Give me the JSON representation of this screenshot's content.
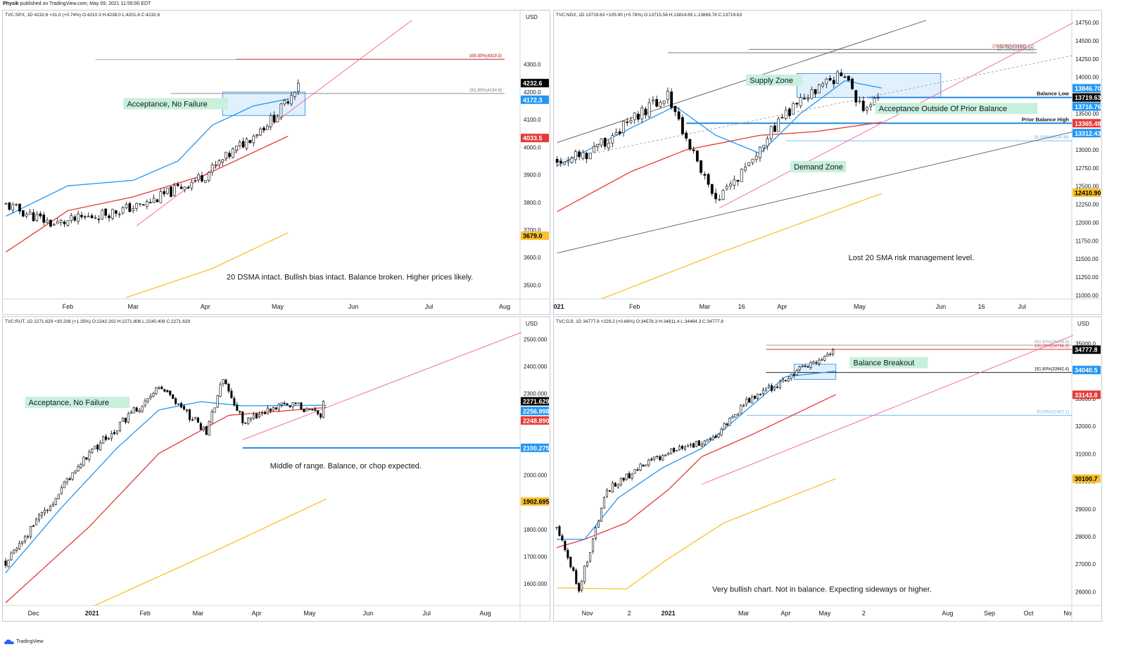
{
  "header": {
    "author": "Physik",
    "published": "published on TradingView.com, May 09, 2021 11:55:00 EDT"
  },
  "footer": {
    "brand": "TradingView"
  },
  "colors": {
    "up": "#ffffff",
    "down": "#000000",
    "ema": "#2196f3",
    "sma50": "#e53935",
    "sma200": "#fbc02d",
    "trend": "#f06292",
    "level": "#1e88e5"
  },
  "chart_data": [
    {
      "id": "spx",
      "type": "candlestick",
      "symbol_line": "TVC:SPX, 1D 4232.6 +31.0 (+0.74%) O:4210.3 H:4238.0 L:4201.6 C:4232.6",
      "currency": "USD",
      "y_ticks": [
        "4300.0",
        "4200.0",
        "4100.0",
        "4000.0",
        "3900.0",
        "3800.0",
        "3700.0",
        "3600.0",
        "3500.0"
      ],
      "y_tick_values": [
        4300,
        4200,
        4100,
        4000,
        3900,
        3800,
        3700,
        3600,
        3500
      ],
      "ylim": [
        3450,
        4460
      ],
      "x_labels": [
        "Feb",
        "Mar",
        "Apr",
        "May",
        "Jun",
        "Jul",
        "Aug"
      ],
      "x_label_index": [
        18,
        37,
        58,
        79,
        101,
        123,
        145
      ],
      "n_slots": 150,
      "candles": {
        "start": 3790,
        "end": 4232.6,
        "dips": [
          [
            14,
            3720
          ],
          [
            40,
            3790
          ],
          [
            58,
            3900
          ],
          [
            79,
            4120
          ]
        ],
        "count": 86,
        "seed": 11,
        "vol": 18
      },
      "ema20": [
        [
          0,
          3750
        ],
        [
          18,
          3860
        ],
        [
          37,
          3880
        ],
        [
          50,
          3950
        ],
        [
          60,
          4080
        ],
        [
          72,
          4150
        ],
        [
          82,
          4175
        ]
      ],
      "sma50": [
        [
          0,
          3620
        ],
        [
          18,
          3770
        ],
        [
          37,
          3820
        ],
        [
          58,
          3900
        ],
        [
          82,
          4040
        ]
      ],
      "sma200": [
        [
          35,
          3455
        ],
        [
          60,
          3560
        ],
        [
          82,
          3690
        ]
      ],
      "trendlines": [
        {
          "c": "trend",
          "p": [
            [
              38,
              3715
            ],
            [
              118,
              4460
            ]
          ]
        }
      ],
      "hlines": [
        {
          "y": 4317.9,
          "x1": 26,
          "x2": 145,
          "color": "#9e9e9e",
          "label": "261.80%(4317.9)"
        },
        {
          "y": 4319.2,
          "x1": 67,
          "x2": 145,
          "color": "#e53935",
          "label": "100.00%(4319.2)"
        },
        {
          "y": 4194.8,
          "x1": 48,
          "x2": 145,
          "color": "#787b86",
          "label": "261.80%(4194.8)"
        }
      ],
      "box": {
        "x1": 63,
        "x2": 87,
        "y1": 4115,
        "y2": 4200
      },
      "price_labels": [
        {
          "text": "4232.6",
          "y": 4232.6,
          "bg": "#000000",
          "fg": "#ffffff"
        },
        {
          "text": "4172.3",
          "y": 4172.3,
          "bg": "#2196f3",
          "fg": "#ffffff"
        },
        {
          "text": "4033.5",
          "y": 4033.5,
          "bg": "#e53935",
          "fg": "#ffffff"
        },
        {
          "text": "3679.0",
          "y": 3679.0,
          "bg": "#fbc02d",
          "fg": "#000000"
        }
      ],
      "notes": [
        {
          "text": "Acceptance, No Failure",
          "x": 35,
          "y": 4150,
          "boxed": true
        }
      ],
      "comment": "20 DSMA intact. Bullish bias intact. Balance broken. Higher prices likely.",
      "comment_pos": [
        100,
        3520
      ]
    },
    {
      "id": "ndx",
      "type": "candlestick",
      "symbol_line": "TVC:NDX, 1D 13719.63 +105.90 (+0.78%) O:13715.56 H:13814.65 L:13669.78 C:13719.63",
      "currency": "",
      "y_ticks": [
        "14750.00",
        "14500.00",
        "14250.00",
        "14000.00",
        "13750.00",
        "13500.00",
        "13250.00",
        "13000.00",
        "12750.00",
        "12500.00",
        "12250.00",
        "12000.00",
        "11750.00",
        "11500.00",
        "11250.00",
        "11000.00"
      ],
      "y_tick_values": [
        14750,
        14500,
        14250,
        14000,
        13750,
        13500,
        13250,
        13000,
        12750,
        12500,
        12250,
        12000,
        11750,
        11500,
        11250,
        11000
      ],
      "ylim": [
        10950,
        14780
      ],
      "x_labels": [
        "2021",
        "Feb",
        "Mar",
        "16",
        "Apr",
        "May",
        "Jun",
        "16",
        "Jul"
      ],
      "x_label_index": [
        0,
        21,
        40,
        50,
        61,
        82,
        104,
        115,
        126
      ],
      "n_slots": 140,
      "candles": {
        "start": 12850,
        "end": 13719.63,
        "dips": [
          [
            8,
            12950
          ],
          [
            30,
            13750
          ],
          [
            43,
            12250
          ],
          [
            62,
            13500
          ],
          [
            77,
            14050
          ],
          [
            84,
            13500
          ]
        ],
        "count": 88,
        "seed": 29,
        "vol": 80
      },
      "ema20": [
        [
          0,
          12780
        ],
        [
          20,
          13300
        ],
        [
          32,
          13600
        ],
        [
          43,
          13200
        ],
        [
          55,
          12950
        ],
        [
          66,
          13500
        ],
        [
          78,
          13950
        ],
        [
          88,
          13850
        ]
      ],
      "sma50": [
        [
          0,
          12150
        ],
        [
          20,
          12700
        ],
        [
          35,
          13000
        ],
        [
          55,
          13200
        ],
        [
          70,
          13250
        ],
        [
          88,
          13380
        ]
      ],
      "sma200": [
        [
          12,
          10950
        ],
        [
          45,
          11600
        ],
        [
          88,
          12400
        ]
      ],
      "trendlines": [
        {
          "c": "#555555",
          "p": [
            [
              0,
              13100
            ],
            [
              100,
              14780
            ]
          ]
        },
        {
          "c": "#555555",
          "p": [
            [
              0,
              11580
            ],
            [
              140,
              13250
            ]
          ]
        },
        {
          "c": "trend",
          "p": [
            [
              44,
              12200
            ],
            [
              140,
              14750
            ]
          ]
        },
        {
          "c": "#9e9e9e",
          "dash": true,
          "p": [
            [
              0,
              12850
            ],
            [
              140,
              14300
            ]
          ]
        }
      ],
      "hlines": [
        {
          "y": 14380,
          "x1": 52,
          "x2": 128,
          "color": "#e53935",
          "label": "100.00%(14384.0)"
        },
        {
          "y": 14380,
          "x1": 52,
          "x2": 130,
          "color": "#787b86",
          "label": "261.80%(14380.82)"
        },
        {
          "y": 14335,
          "x1": 30,
          "x2": 130,
          "color": "#787b86",
          "label": "127.20%(14334.30)"
        },
        {
          "y": 13719.63,
          "x1": 84,
          "x2": 140,
          "color": "#1e88e5",
          "w": 2,
          "label": "Balance Low"
        },
        {
          "y": 13365.48,
          "x1": 35,
          "x2": 140,
          "color": "#1e88e5",
          "w": 2,
          "label": "Prior Balance High"
        },
        {
          "y": 13124.38,
          "x1": 62,
          "x2": 140,
          "color": "#64b5f6",
          "label": "50.00%(13124.38)"
        }
      ],
      "box": {
        "x1": 65,
        "x2": 104,
        "y1": 13720,
        "y2": 14050
      },
      "price_labels": [
        {
          "text": "13846.70",
          "y": 13846.7,
          "bg": "#2196f3",
          "fg": "#ffffff"
        },
        {
          "text": "13719.63",
          "y": 13719.63,
          "bg": "#000000",
          "fg": "#ffffff"
        },
        {
          "text": "13716.76",
          "y": 13595,
          "bg": "#2196f3",
          "fg": "#ffffff"
        },
        {
          "text": "13365.48",
          "y": 13365.48,
          "bg": "#e53935",
          "fg": "#ffffff"
        },
        {
          "text": "13312.43",
          "y": 13230,
          "bg": "#2196f3",
          "fg": "#ffffff"
        },
        {
          "text": "12410.90",
          "y": 12410.9,
          "bg": "#fbc02d",
          "fg": "#000000"
        }
      ],
      "notes": [
        {
          "text": "Supply Zone",
          "x": 52,
          "y": 13930,
          "boxed": true
        },
        {
          "text": "Acceptance Outside Of Prior Balance",
          "x": 87,
          "y": 13540,
          "boxed": true
        },
        {
          "text": "Demand Zone",
          "x": 64,
          "y": 12740,
          "boxed": true
        }
      ],
      "comment": "Lost 20 SMA risk management level.",
      "comment_pos": [
        96,
        11480
      ]
    },
    {
      "id": "rut",
      "type": "candlestick",
      "symbol_line": "TVC:RUT, 1D 2271.629 +30.208 (+1.35%) O:2242.202 H:2271.806 L:2240.408 C:2271.629",
      "currency": "USD",
      "y_ticks": [
        "2500.000",
        "2400.000",
        "2300.000",
        "2200.000",
        "2100.000",
        "2000.000",
        "1900.000",
        "1800.000",
        "1700.000",
        "1600.000"
      ],
      "y_tick_values": [
        2500,
        2400,
        2300,
        2200,
        2100,
        2000,
        1900,
        1800,
        1700,
        1600
      ],
      "ylim": [
        1520,
        2545
      ],
      "x_labels": [
        "Dec",
        "2021",
        "Feb",
        "Mar",
        "Apr",
        "May",
        "Jun",
        "Jul",
        "Aug"
      ],
      "x_label_index": [
        10,
        31,
        50,
        69,
        90,
        109,
        130,
        151,
        172
      ],
      "n_slots": 185,
      "candles": {
        "start": 1680,
        "end": 2271.629,
        "dips": [
          [
            30,
            2080
          ],
          [
            55,
            2320
          ],
          [
            72,
            2160
          ],
          [
            78,
            2360
          ],
          [
            85,
            2200
          ],
          [
            100,
            2270
          ],
          [
            113,
            2220
          ]
        ],
        "count": 115,
        "seed": 47,
        "vol": 14
      },
      "ema20": [
        [
          0,
          1640
        ],
        [
          20,
          1880
        ],
        [
          40,
          2100
        ],
        [
          55,
          2240
        ],
        [
          70,
          2270
        ],
        [
          85,
          2255
        ],
        [
          115,
          2257
        ]
      ],
      "sma50": [
        [
          0,
          1530
        ],
        [
          30,
          1810
        ],
        [
          55,
          2080
        ],
        [
          80,
          2220
        ],
        [
          115,
          2249
        ]
      ],
      "sma200": [
        [
          32,
          1520
        ],
        [
          75,
          1720
        ],
        [
          115,
          1912
        ]
      ],
      "trendlines": [
        {
          "c": "trend",
          "p": [
            [
              85,
              2130
            ],
            [
              185,
              2525
            ]
          ]
        }
      ],
      "hlines": [
        {
          "y": 2100.275,
          "x1": 85,
          "x2": 185,
          "color": "#1e88e5",
          "w": 2,
          "label": ""
        }
      ],
      "box": null,
      "price_labels": [
        {
          "text": "2271.629",
          "y": 2271.629,
          "bg": "#000000",
          "fg": "#ffffff"
        },
        {
          "text": "2256.998",
          "y": 2236,
          "bg": "#2196f3",
          "fg": "#ffffff"
        },
        {
          "text": "2248.890",
          "y": 2201,
          "bg": "#e53935",
          "fg": "#ffffff"
        },
        {
          "text": "2100.275",
          "y": 2100.275,
          "bg": "#2196f3",
          "fg": "#ffffff"
        },
        {
          "text": "1902.695",
          "y": 1902.695,
          "bg": "#fbc02d",
          "fg": "#000000"
        }
      ],
      "notes": [
        {
          "text": "Acceptance, No Failure",
          "x": 8,
          "y": 2260,
          "boxed": true
        }
      ],
      "comment": "Middle of range. Balance, or chop expected.",
      "comment_pos": [
        122,
        2025
      ]
    },
    {
      "id": "dji",
      "type": "candlestick",
      "symbol_line": "TVC:DJI, 1D 34777.8 +229.2 (+0.66%) O:34578.3 H:34811.4 L:34464.3 C:34777.8",
      "currency": "USD",
      "y_ticks": [
        "35000.0",
        "34000.0",
        "33000.0",
        "32000.0",
        "31000.0",
        "30000.0",
        "29000.0",
        "28000.0",
        "27000.0",
        "26000.0"
      ],
      "y_tick_values": [
        35000,
        34000,
        33000,
        32000,
        31000,
        30000,
        29000,
        28000,
        27000,
        26000
      ],
      "ylim": [
        25500,
        35600
      ],
      "x_labels": [
        "Nov",
        "2",
        "2021",
        "Mar",
        "Apr",
        "May",
        "2",
        "Aug",
        "Sep",
        "Oct",
        "No"
      ],
      "x_label_index": [
        11,
        26,
        40,
        67,
        82,
        96,
        110,
        140,
        155,
        169,
        183
      ],
      "n_slots": 185,
      "candles": {
        "start": 28300,
        "end": 34777.8,
        "dips": [
          [
            8,
            26100
          ],
          [
            18,
            29700
          ],
          [
            30,
            30500
          ],
          [
            45,
            31300
          ],
          [
            55,
            31400
          ],
          [
            67,
            32800
          ],
          [
            80,
            33600
          ]
        ],
        "count": 100,
        "seed": 61,
        "vol": 120
      },
      "ema20": [
        [
          0,
          27900
        ],
        [
          10,
          27900
        ],
        [
          22,
          29400
        ],
        [
          38,
          30500
        ],
        [
          52,
          31200
        ],
        [
          67,
          32500
        ],
        [
          82,
          33800
        ],
        [
          100,
          34000
        ]
      ],
      "sma50": [
        [
          0,
          27600
        ],
        [
          10,
          27900
        ],
        [
          25,
          28500
        ],
        [
          40,
          29700
        ],
        [
          52,
          30900
        ],
        [
          70,
          31700
        ],
        [
          100,
          33150
        ]
      ],
      "sma200": [
        [
          0,
          26140
        ],
        [
          25,
          26100
        ],
        [
          40,
          27200
        ],
        [
          60,
          28500
        ],
        [
          100,
          30100
        ]
      ],
      "trendlines": [
        {
          "c": "trend",
          "p": [
            [
              52,
              29900
            ],
            [
              185,
              35300
            ]
          ]
        }
      ],
      "hlines": [
        {
          "y": 34940,
          "x1": 75,
          "x2": 185,
          "color": "#9e9e9e",
          "label": "261.80%(35098.8)"
        },
        {
          "y": 34790,
          "x1": 75,
          "x2": 185,
          "color": "#e53935",
          "label": "100.00%(34796.3)"
        },
        {
          "y": 33950,
          "x1": 75,
          "x2": 185,
          "color": "#000000",
          "label": "161.80%(33942.4)"
        },
        {
          "y": 32400,
          "x1": 68,
          "x2": 185,
          "color": "#64b5f6",
          "label": "50.00%(32402.1)"
        }
      ],
      "box": {
        "x1": 85,
        "x2": 100,
        "y1": 33700,
        "y2": 34250
      },
      "price_labels": [
        {
          "text": "34777.8",
          "y": 34777.8,
          "bg": "#000000",
          "fg": "#ffffff"
        },
        {
          "text": "34040.5",
          "y": 34040.5,
          "bg": "#2196f3",
          "fg": "#ffffff"
        },
        {
          "text": "33143.8",
          "y": 33143.8,
          "bg": "#e53935",
          "fg": "#ffffff"
        },
        {
          "text": "30100.7",
          "y": 30100.7,
          "bg": "#fbc02d",
          "fg": "#000000"
        }
      ],
      "notes": [
        {
          "text": "Balance Breakout",
          "x": 106,
          "y": 34230,
          "boxed": true
        }
      ],
      "comment": "Very bullish chart. Not in balance. Expecting sideways or higher.",
      "comment_pos": [
        95,
        26000
      ]
    }
  ]
}
